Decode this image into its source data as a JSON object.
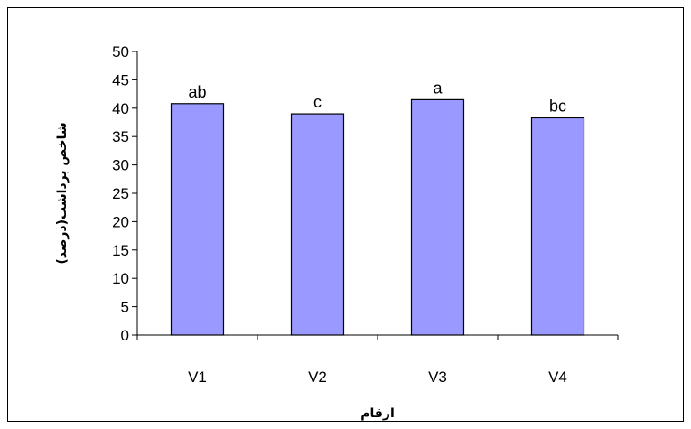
{
  "chart_data": {
    "type": "bar",
    "categories": [
      "V1",
      "V2",
      "V3",
      "V4"
    ],
    "values": [
      40.8,
      39.0,
      41.5,
      38.3
    ],
    "annotations": [
      "ab",
      "c",
      "a",
      "bc"
    ],
    "xlabel": "ارقام",
    "ylabel": "شاخص برداشت(درصد)",
    "ylim": [
      0,
      50
    ],
    "yticks": [
      0,
      5,
      10,
      15,
      20,
      25,
      30,
      35,
      40,
      45,
      50
    ],
    "grid": false,
    "legend": "none",
    "bar_color": "#9999ff"
  }
}
